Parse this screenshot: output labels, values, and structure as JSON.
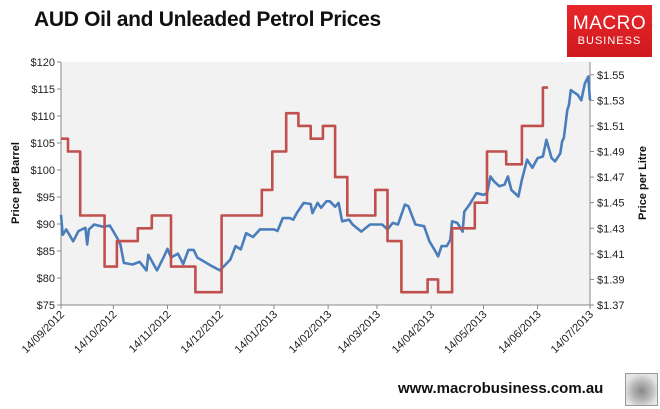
{
  "chart_data": {
    "type": "line",
    "title": "AUD Oil and Unleaded Petrol Prices",
    "ylabel_left": "Price per Barrel",
    "ylabel_right": "Price per Litre",
    "ylim_left": [
      75,
      120
    ],
    "ylim_right": [
      1.37,
      1.56
    ],
    "yticks_left": [
      "$75",
      "$80",
      "$85",
      "$90",
      "$95",
      "$100",
      "$105",
      "$110",
      "$115",
      "$120"
    ],
    "yticks_right": [
      "$1.37",
      "$1.39",
      "$1.41",
      "$1.43",
      "$1.45",
      "$1.47",
      "$1.49",
      "$1.51",
      "$1.53",
      "$1.55"
    ],
    "xlim": [
      "14/09/2012",
      "14/07/2013"
    ],
    "xticks": [
      "14/09/2012",
      "14/10/2012",
      "14/11/2012",
      "14/12/2012",
      "14/01/2013",
      "14/02/2013",
      "14/03/2013",
      "14/04/2013",
      "14/05/2013",
      "14/06/2013",
      "14/07/2013"
    ],
    "grid": false,
    "plot_background": "#f2f2f2",
    "series": [
      {
        "axis": "left",
        "color": "#4a7ebb",
        "style": "line",
        "points": [
          [
            "14/09/2012",
            91.7
          ],
          [
            "15/09/2012",
            88.0
          ],
          [
            "17/09/2012",
            89.0
          ],
          [
            "21/09/2012",
            86.8
          ],
          [
            "24/09/2012",
            88.7
          ],
          [
            "28/09/2012",
            89.3
          ],
          [
            "29/09/2012",
            86.2
          ],
          [
            "30/09/2012",
            89.0
          ],
          [
            "03/10/2012",
            89.9
          ],
          [
            "08/10/2012",
            89.5
          ],
          [
            "12/10/2012",
            89.7
          ],
          [
            "16/10/2012",
            87.5
          ],
          [
            "18/10/2012",
            86.2
          ],
          [
            "20/10/2012",
            82.8
          ],
          [
            "25/10/2012",
            82.5
          ],
          [
            "29/10/2012",
            83.0
          ],
          [
            "02/11/2012",
            81.4
          ],
          [
            "03/11/2012",
            84.3
          ],
          [
            "08/11/2012",
            81.4
          ],
          [
            "12/11/2012",
            84.0
          ],
          [
            "14/11/2012",
            85.4
          ],
          [
            "16/11/2012",
            83.8
          ],
          [
            "20/11/2012",
            84.5
          ],
          [
            "23/11/2012",
            82.6
          ],
          [
            "26/11/2012",
            85.2
          ],
          [
            "29/11/2012",
            85.2
          ],
          [
            "01/12/2012",
            83.8
          ],
          [
            "10/12/2012",
            82.1
          ],
          [
            "14/12/2012",
            81.4
          ],
          [
            "20/12/2012",
            83.4
          ],
          [
            "23/12/2012",
            85.9
          ],
          [
            "26/12/2012",
            85.3
          ],
          [
            "29/12/2012",
            88.3
          ],
          [
            "02/01/2013",
            87.6
          ],
          [
            "06/01/2013",
            89.0
          ],
          [
            "14/01/2013",
            89.0
          ],
          [
            "16/01/2013",
            88.7
          ],
          [
            "19/01/2013",
            91.1
          ],
          [
            "23/01/2013",
            91.1
          ],
          [
            "25/01/2013",
            90.8
          ],
          [
            "27/01/2013",
            92.0
          ],
          [
            "31/01/2013",
            93.9
          ],
          [
            "04/02/2013",
            93.7
          ],
          [
            "05/02/2013",
            92.0
          ],
          [
            "08/02/2013",
            93.9
          ],
          [
            "10/02/2013",
            93.0
          ],
          [
            "13/02/2013",
            94.2
          ],
          [
            "15/02/2013",
            94.2
          ],
          [
            "18/02/2013",
            93.2
          ],
          [
            "20/02/2013",
            93.9
          ],
          [
            "22/02/2013",
            90.5
          ],
          [
            "26/02/2013",
            90.8
          ],
          [
            "28/02/2013",
            89.9
          ],
          [
            "05/03/2013",
            88.6
          ],
          [
            "10/03/2013",
            89.9
          ],
          [
            "17/03/2013",
            89.9
          ],
          [
            "20/03/2013",
            89.0
          ],
          [
            "23/03/2013",
            90.2
          ],
          [
            "26/03/2013",
            89.9
          ],
          [
            "30/03/2013",
            93.6
          ],
          [
            "01/04/2013",
            93.3
          ],
          [
            "05/04/2013",
            89.9
          ],
          [
            "10/04/2013",
            89.6
          ],
          [
            "13/04/2013",
            86.8
          ],
          [
            "16/04/2013",
            85.2
          ],
          [
            "18/04/2013",
            84.0
          ],
          [
            "20/04/2013",
            85.9
          ],
          [
            "23/04/2013",
            85.9
          ],
          [
            "25/04/2013",
            87.1
          ],
          [
            "26/04/2013",
            90.5
          ],
          [
            "29/04/2013",
            90.2
          ],
          [
            "02/05/2013",
            88.6
          ],
          [
            "03/05/2013",
            92.3
          ],
          [
            "06/05/2013",
            93.6
          ],
          [
            "10/05/2013",
            95.7
          ],
          [
            "14/05/2013",
            95.4
          ],
          [
            "16/05/2013",
            95.7
          ],
          [
            "18/05/2013",
            98.8
          ],
          [
            "20/05/2013",
            97.9
          ],
          [
            "23/05/2013",
            97.0
          ],
          [
            "26/05/2013",
            97.3
          ],
          [
            "28/05/2013",
            98.8
          ],
          [
            "30/05/2013",
            96.3
          ],
          [
            "03/06/2013",
            95.1
          ],
          [
            "05/06/2013",
            98.2
          ],
          [
            "08/06/2013",
            101.9
          ],
          [
            "11/06/2013",
            100.4
          ],
          [
            "14/06/2013",
            102.2
          ],
          [
            "17/06/2013",
            102.5
          ],
          [
            "19/06/2013",
            105.6
          ],
          [
            "22/06/2013",
            102.2
          ],
          [
            "24/06/2013",
            101.6
          ],
          [
            "27/06/2013",
            103.1
          ],
          [
            "28/06/2013",
            105.3
          ],
          [
            "29/06/2013",
            105.9
          ],
          [
            "01/07/2013",
            111.1
          ],
          [
            "02/07/2013",
            112.1
          ],
          [
            "03/07/2013",
            114.8
          ],
          [
            "07/07/2013",
            113.9
          ],
          [
            "09/07/2013",
            112.9
          ],
          [
            "11/07/2013",
            116.0
          ],
          [
            "13/07/2013",
            117.3
          ],
          [
            "14/07/2013",
            112.9
          ]
        ]
      },
      {
        "axis": "right",
        "color": "#c0504d",
        "style": "step",
        "points": [
          [
            "14/09/2012",
            1.5
          ],
          [
            "18/09/2012",
            1.49
          ],
          [
            "25/09/2012",
            1.44
          ],
          [
            "09/10/2012",
            1.4
          ],
          [
            "16/10/2012",
            1.42
          ],
          [
            "28/10/2012",
            1.43
          ],
          [
            "05/11/2012",
            1.44
          ],
          [
            "16/11/2012",
            1.4
          ],
          [
            "30/11/2012",
            1.38
          ],
          [
            "15/12/2012",
            1.44
          ],
          [
            "07/01/2013",
            1.46
          ],
          [
            "13/01/2013",
            1.49
          ],
          [
            "21/01/2013",
            1.52
          ],
          [
            "28/01/2013",
            1.51
          ],
          [
            "04/02/2013",
            1.5
          ],
          [
            "11/02/2013",
            1.51
          ],
          [
            "18/02/2013",
            1.47
          ],
          [
            "25/02/2013",
            1.44
          ],
          [
            "13/03/2013",
            1.46
          ],
          [
            "20/03/2013",
            1.42
          ],
          [
            "28/03/2013",
            1.38
          ],
          [
            "12/04/2013",
            1.39
          ],
          [
            "18/04/2013",
            1.38
          ],
          [
            "26/04/2013",
            1.43
          ],
          [
            "09/05/2013",
            1.45
          ],
          [
            "16/05/2013",
            1.49
          ],
          [
            "27/05/2013",
            1.48
          ],
          [
            "05/06/2013",
            1.51
          ],
          [
            "17/06/2013",
            1.54
          ],
          [
            "20/06/2013",
            1.54
          ]
        ]
      }
    ]
  },
  "logo": {
    "line1": "MACRO",
    "line2": "BUSINESS"
  },
  "footer": {
    "url": "www.macrobusiness.com.au"
  },
  "icons": {
    "wolf": "wolf-logo-icon"
  }
}
